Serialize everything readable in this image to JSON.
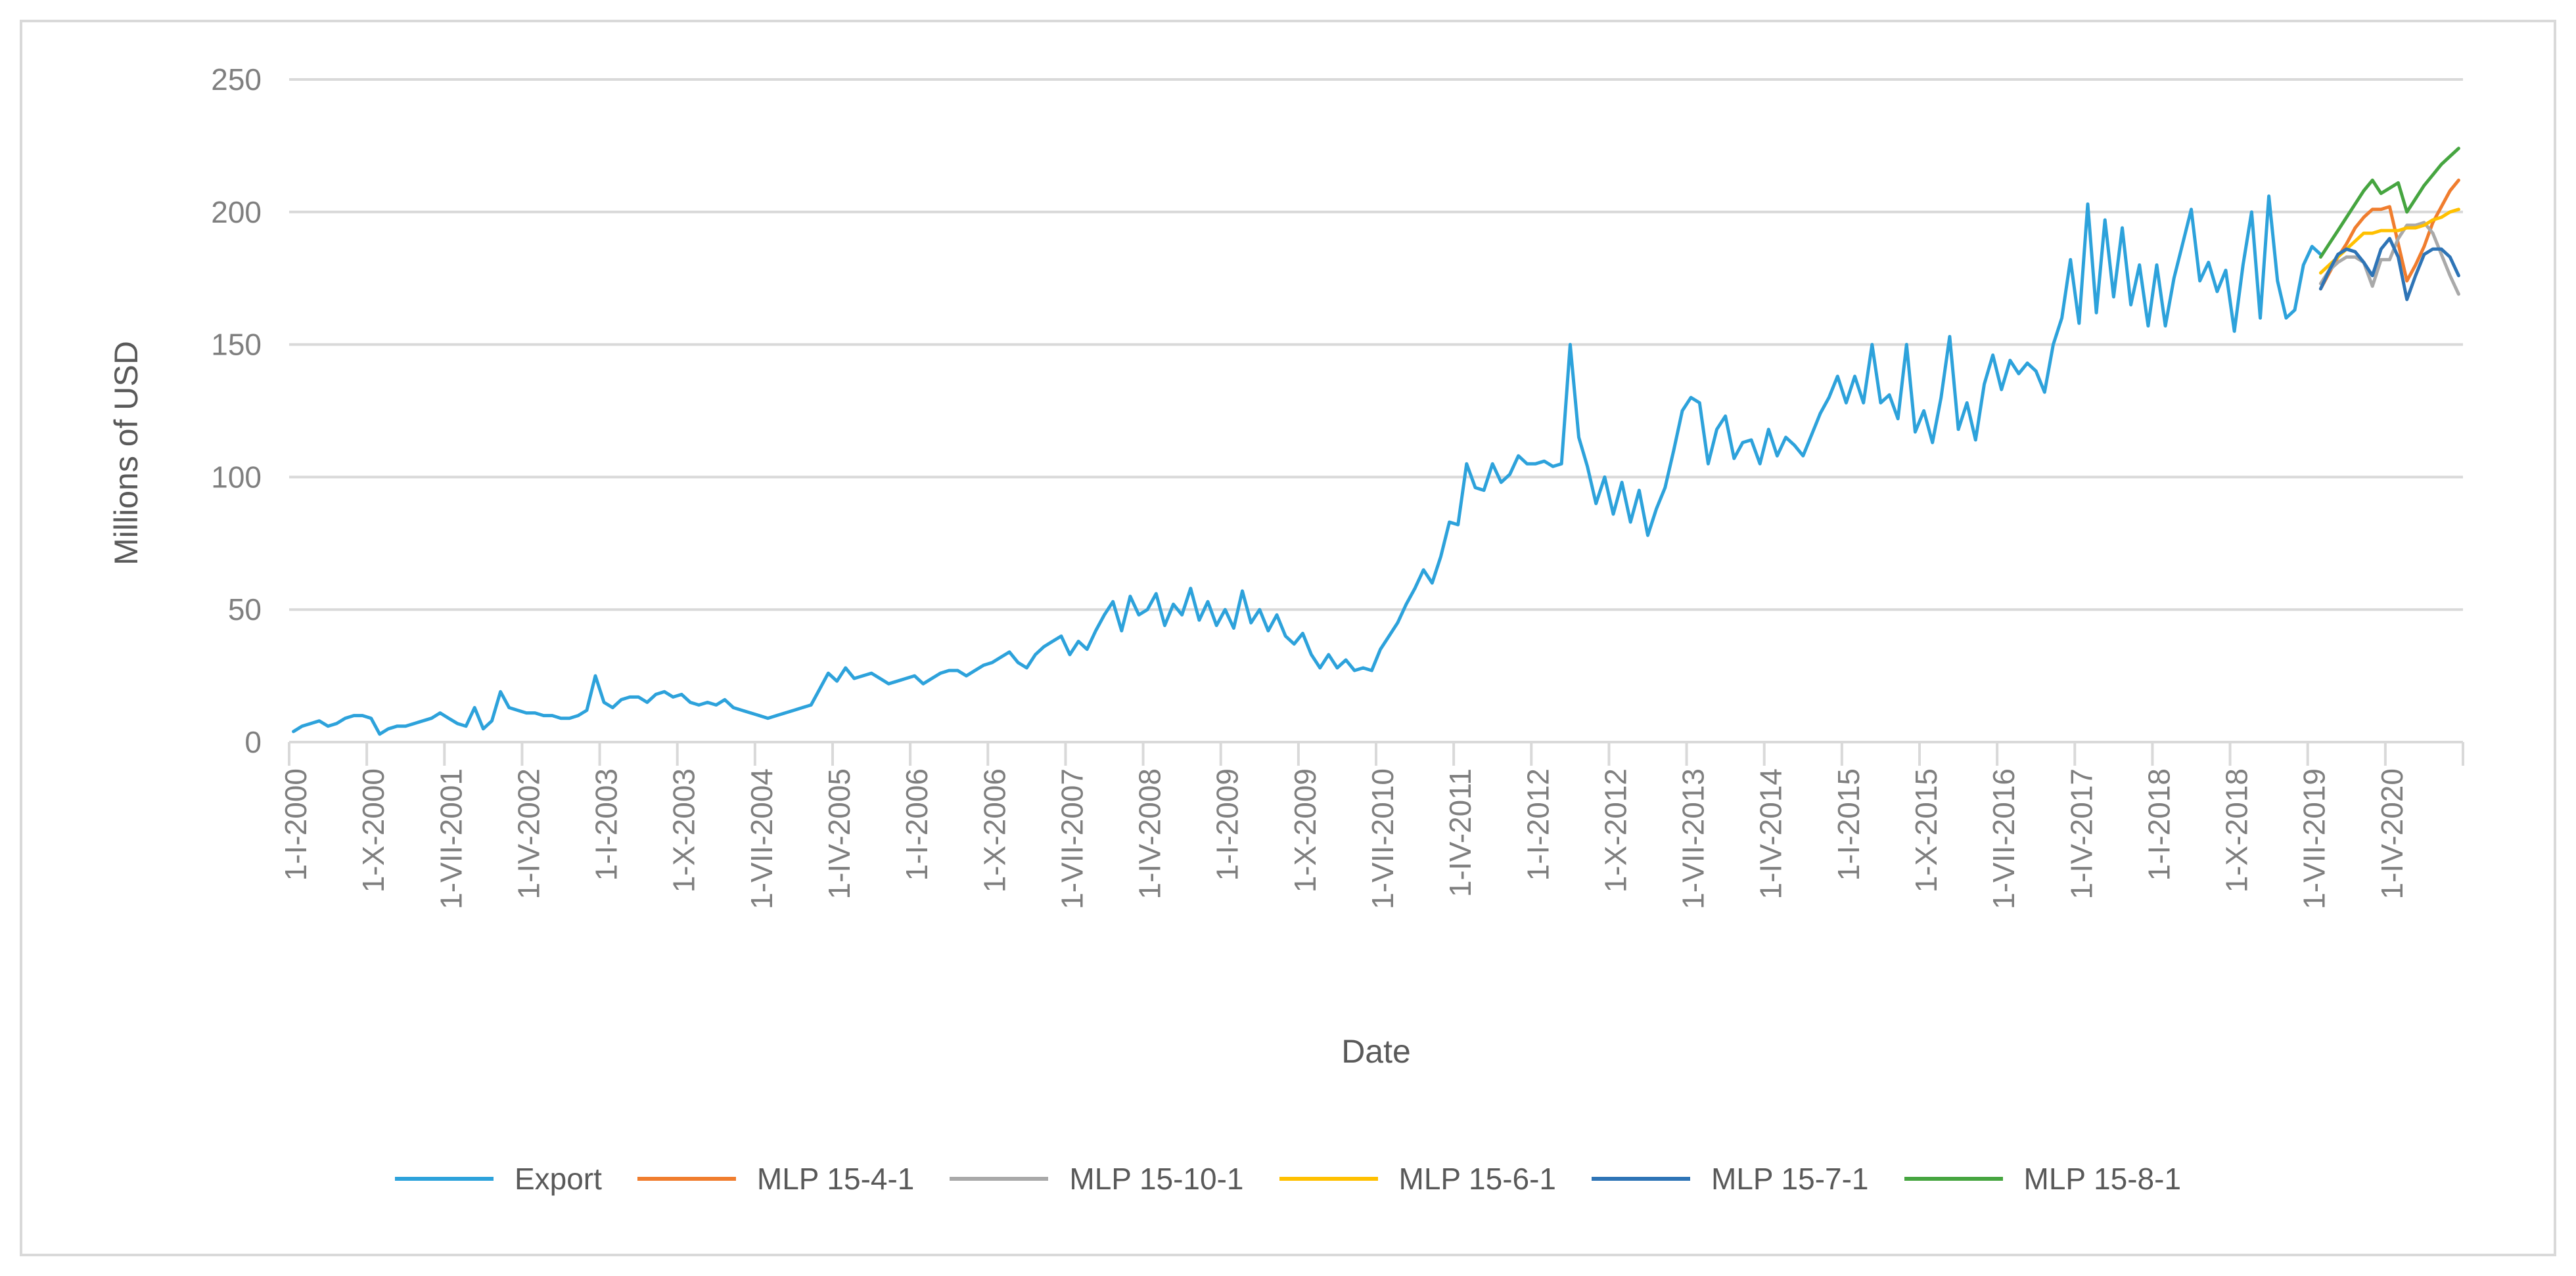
{
  "page": {
    "background": "#FFFFFF",
    "frame_color": "#D9D9D9"
  },
  "chart_data": {
    "type": "line",
    "title": "",
    "ylabel": "Millions of USD",
    "xlabel": "Date",
    "ylim": [
      0,
      250
    ],
    "yticks": [
      0,
      50,
      100,
      150,
      200,
      250
    ],
    "grid": "horizontal",
    "gridline_color": "#D9D9D9",
    "axis_color": "#D9D9D9",
    "tick_label_color": "#7F7F7F",
    "axis_title_color": "#595959",
    "legend_position": "bottom",
    "legend": [
      "Export",
      "MLP 15-4-1",
      "MLP 15-10-1",
      "MLP 15-6-1",
      "MLP 15-7-1",
      "MLP 15-8-1"
    ],
    "months_total": 252,
    "x_start_month": "1-I-2000",
    "x_end_month": "1-XII-2020",
    "month_label_interval": 9,
    "x_tick_labels": [
      "1-I-2000",
      "1-X-2000",
      "1-VII-2001",
      "1-IV-2002",
      "1-I-2003",
      "1-X-2003",
      "1-VII-2004",
      "1-IV-2005",
      "1-I-2006",
      "1-X-2006",
      "1-VII-2007",
      "1-IV-2008",
      "1-I-2009",
      "1-X-2009",
      "1-VII-2010",
      "1-IV-2011",
      "1-I-2012",
      "1-X-2012",
      "1-VII-2013",
      "1-IV-2014",
      "1-I-2015",
      "1-X-2015",
      "1-VII-2016",
      "1-IV-2017",
      "1-I-2018",
      "1-X-2018",
      "1-VII-2019",
      "1-IV-2020"
    ],
    "series": [
      {
        "name": "Export",
        "color": "#2DA2DB",
        "start_month": 0,
        "first_point": "1-I-2000",
        "last_point": "1-VIII-2019",
        "values": [
          4,
          6,
          7,
          8,
          6,
          7,
          9,
          10,
          10,
          9,
          3,
          5,
          6,
          6,
          7,
          8,
          9,
          11,
          9,
          7,
          6,
          13,
          5,
          8,
          19,
          13,
          12,
          11,
          11,
          10,
          10,
          9,
          9,
          10,
          12,
          25,
          15,
          13,
          16,
          17,
          17,
          15,
          18,
          19,
          17,
          18,
          15,
          14,
          15,
          14,
          16,
          13,
          12,
          11,
          10,
          9,
          10,
          11,
          12,
          13,
          14,
          20,
          26,
          23,
          28,
          24,
          25,
          26,
          24,
          22,
          23,
          24,
          25,
          22,
          24,
          26,
          27,
          27,
          25,
          27,
          29,
          30,
          32,
          34,
          30,
          28,
          33,
          36,
          38,
          40,
          33,
          38,
          35,
          42,
          48,
          53,
          42,
          55,
          48,
          50,
          56,
          44,
          52,
          48,
          58,
          46,
          53,
          44,
          50,
          43,
          57,
          45,
          50,
          42,
          48,
          40,
          37,
          41,
          33,
          28,
          33,
          28,
          31,
          27,
          28,
          27,
          35,
          40,
          45,
          52,
          58,
          65,
          60,
          70,
          83,
          82,
          105,
          96,
          95,
          105,
          98,
          101,
          108,
          105,
          105,
          106,
          104,
          105,
          150,
          115,
          104,
          90,
          100,
          86,
          98,
          83,
          95,
          78,
          88,
          96,
          110,
          125,
          130,
          128,
          105,
          118,
          123,
          107,
          113,
          114,
          105,
          118,
          108,
          115,
          112,
          108,
          116,
          124,
          130,
          138,
          128,
          138,
          128,
          150,
          128,
          131,
          122,
          150,
          117,
          125,
          113,
          130,
          153,
          118,
          128,
          114,
          135,
          146,
          133,
          144,
          139,
          143,
          140,
          132,
          150,
          160,
          182,
          158,
          203,
          162,
          197,
          168,
          194,
          165,
          180,
          157,
          180,
          157,
          175,
          188,
          201,
          174,
          181,
          170,
          178,
          155,
          180,
          200,
          160,
          206,
          174,
          160,
          163,
          180,
          187,
          184
        ]
      },
      {
        "name": "MLP 15-4-1",
        "color": "#F07D2E",
        "start_month": 235,
        "first_point": "1-VIII-2019",
        "last_point": "1-XII-2020",
        "values": [
          171,
          177,
          183,
          188,
          194,
          198,
          201,
          201,
          202,
          188,
          174,
          180,
          187,
          196,
          202,
          208,
          212
        ]
      },
      {
        "name": "MLP 15-10-1",
        "color": "#A9A9A9",
        "start_month": 235,
        "first_point": "1-VIII-2019",
        "last_point": "1-XII-2020",
        "values": [
          173,
          178,
          181,
          183,
          183,
          181,
          172,
          182,
          182,
          190,
          195,
          195,
          196,
          192,
          184,
          176,
          169
        ]
      },
      {
        "name": "MLP 15-6-1",
        "color": "#FFC000",
        "start_month": 235,
        "first_point": "1-VIII-2019",
        "last_point": "1-XII-2020",
        "values": [
          177,
          180,
          183,
          186,
          189,
          192,
          192,
          193,
          193,
          193,
          194,
          194,
          195,
          197,
          198,
          200,
          201
        ]
      },
      {
        "name": "MLP 15-7-1",
        "color": "#2E74B6",
        "start_month": 235,
        "first_point": "1-VIII-2019",
        "last_point": "1-XII-2020",
        "values": [
          171,
          178,
          184,
          186,
          185,
          181,
          176,
          186,
          190,
          183,
          167,
          176,
          184,
          186,
          186,
          183,
          176
        ]
      },
      {
        "name": "MLP 15-8-1",
        "color": "#46A540",
        "start_month": 235,
        "first_point": "1-VIII-2019",
        "last_point": "1-XII-2020",
        "values": [
          183,
          188,
          193,
          198,
          203,
          208,
          212,
          207,
          209,
          211,
          200,
          205,
          210,
          214,
          218,
          221,
          224
        ]
      }
    ]
  }
}
